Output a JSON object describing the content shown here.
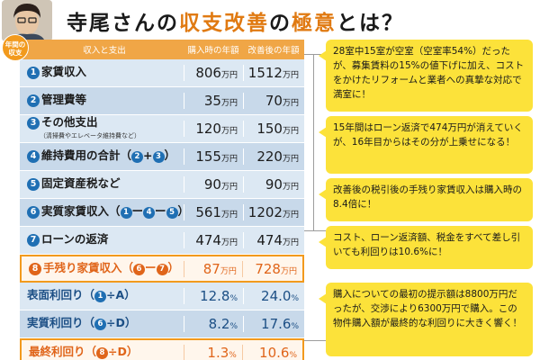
{
  "header": {
    "title_part1": "寺尾さんの",
    "title_part2": "収支改善",
    "title_part3": "の",
    "title_part4": "極意",
    "title_part5": "とは？",
    "badge": "年間の収支"
  },
  "table": {
    "headers": [
      "収入と支出",
      "購入時の年額",
      "改善後の年額"
    ],
    "unit": "万円",
    "rows": [
      {
        "num": "1",
        "label": "家賃収入",
        "sub": "",
        "before": "806",
        "after": "1512"
      },
      {
        "num": "2",
        "label": "管理費等",
        "sub": "",
        "before": "35",
        "after": "70"
      },
      {
        "num": "3",
        "label": "その他支出",
        "sub": "（清掃費やエレベータ維持費など）",
        "before": "120",
        "after": "150"
      },
      {
        "num": "4",
        "label": "維持費用の合計（",
        "formula": [
          "2",
          "+",
          "3"
        ],
        "label_end": "）",
        "before": "155",
        "after": "220"
      },
      {
        "num": "5",
        "label": "固定資産税など",
        "sub": "",
        "before": "90",
        "after": "90"
      },
      {
        "num": "6",
        "label": "実質家賃収入（",
        "formula": [
          "1",
          "ー",
          "4",
          "ー",
          "5"
        ],
        "label_end": "）",
        "before": "561",
        "after": "1202"
      },
      {
        "num": "7",
        "label": "ローンの返済",
        "sub": "",
        "before": "474",
        "after": "474"
      },
      {
        "num": "8",
        "label": "手残り家賃収入（",
        "formula": [
          "6",
          "ー",
          "7"
        ],
        "label_end": "）",
        "before": "87",
        "after": "728"
      },
      {
        "label": "表面利回り（",
        "formula": [
          "1",
          "÷A"
        ],
        "label_end": "）",
        "before": "12.8",
        "after": "24.0",
        "pct": "%"
      },
      {
        "label": "実質利回り（",
        "formula": [
          "6",
          "÷D"
        ],
        "label_end": "）",
        "before": "8.2",
        "after": "17.6",
        "pct": "%"
      },
      {
        "label": "最終利回り（",
        "formula": [
          "8",
          "÷D"
        ],
        "label_end": "）",
        "before": "1.3",
        "after": "10.6",
        "pct": "%"
      }
    ]
  },
  "notes": [
    "28室中15室が空室（空室率54%）だったが、募集賃料の15%の値下げに加え、コストをかけたリフォームと業者への真摯な対応で満室に！",
    "15年間はローン返済で474万円が消えていくが、16年目からはその分が上乗せになる！",
    "改善後の税引後の手残り家賃収入は購入時の8.4倍に！",
    "コスト、ローン返済額、税金をすべて差し引いても利回りは10.6%に！",
    "購入についての最初の提示額は8800万円だったが、交渉により6300万円で購入。この物件購入額が最終的な利回りに大きく響く！"
  ],
  "colors": {
    "accent_orange": "#f29a1d",
    "header_bar": "#f0a646",
    "row_light_blue": "#dce8f3",
    "row_blue": "#c8d9ea",
    "number_circle": "#1f6fb3",
    "note_yellow": "#fce23a",
    "highlight_text": "#e0651a"
  },
  "icons": [
    "avatar-photo",
    "annual-badge"
  ]
}
